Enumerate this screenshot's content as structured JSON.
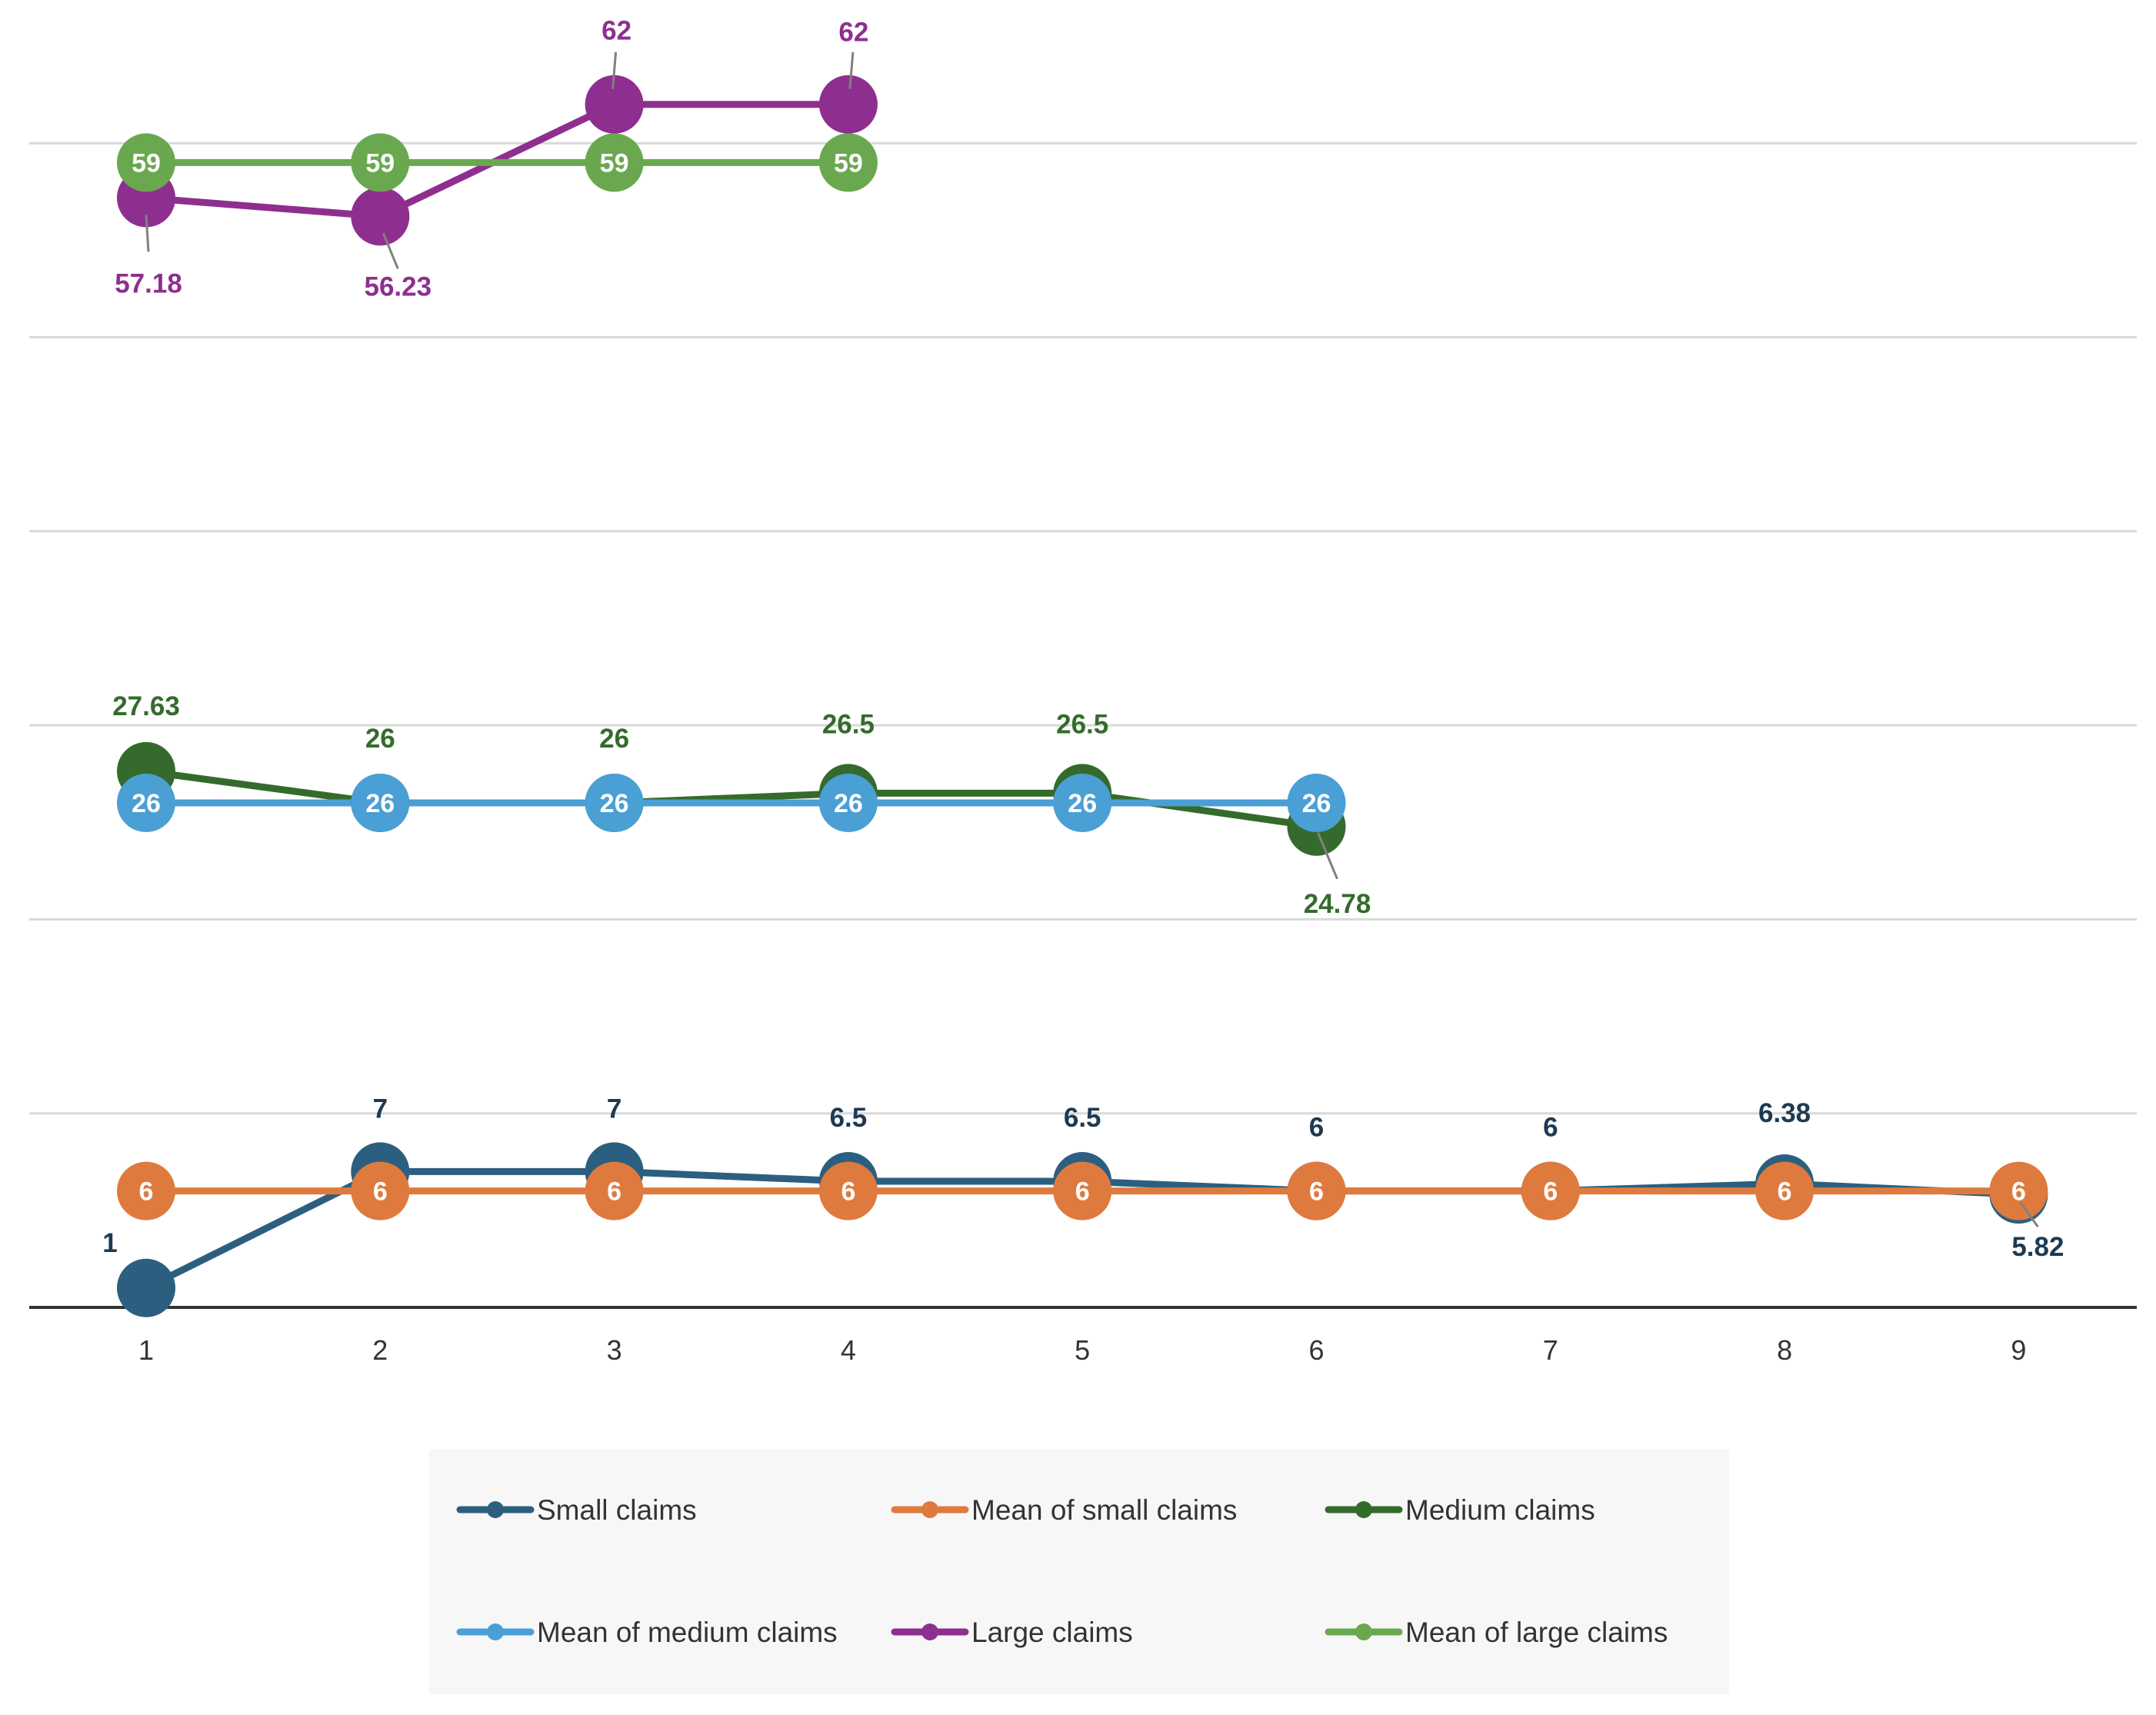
{
  "chart_data": {
    "type": "line",
    "title": "",
    "xlabel": "",
    "ylabel": "",
    "x": [
      1,
      2,
      3,
      4,
      5,
      6,
      7,
      8,
      9
    ],
    "ylim": [
      0,
      60
    ],
    "grid": true,
    "legend": "bottom",
    "series": [
      {
        "name": "Small claims",
        "color": "#2c5f7f",
        "values": [
          1,
          7,
          7,
          6.5,
          6.5,
          6,
          6,
          6.38,
          5.82
        ],
        "labels": [
          "1",
          "7",
          "7",
          "6.5",
          "6.5",
          "6",
          "6",
          "6.38",
          "5.82"
        ]
      },
      {
        "name": "Mean of small claims",
        "color": "#df7a3e",
        "values": [
          6,
          6,
          6,
          6,
          6,
          6,
          6,
          6,
          6
        ],
        "labels": [
          "6",
          "6",
          "6",
          "6",
          "6",
          "6",
          "6",
          "6",
          "6"
        ]
      },
      {
        "name": "Medium claims",
        "color": "#346b2c",
        "values": [
          27.63,
          26,
          26,
          26.5,
          26.5,
          24.78,
          null,
          null,
          null
        ],
        "labels": [
          "27.63",
          "26",
          "26",
          "26.5",
          "26.5",
          "24.78",
          null,
          null,
          null
        ]
      },
      {
        "name": "Mean of medium claims",
        "color": "#4a9fd4",
        "values": [
          26,
          26,
          26,
          26,
          26,
          26,
          null,
          null,
          null
        ],
        "labels": [
          "26",
          "26",
          "26",
          "26",
          "26",
          "26",
          null,
          null,
          null
        ]
      },
      {
        "name": "Large claims",
        "color": "#8e2f8f",
        "values": [
          57.18,
          56.23,
          62,
          62,
          null,
          null,
          null,
          null,
          null
        ],
        "labels": [
          "57.18",
          "56.23",
          "62",
          "62",
          null,
          null,
          null,
          null,
          null
        ]
      },
      {
        "name": "Mean of large claims",
        "color": "#6aa84f",
        "values": [
          59,
          59,
          59,
          59,
          null,
          null,
          null,
          null,
          null
        ],
        "labels": [
          "59",
          "59",
          "59",
          "59",
          null,
          null,
          null,
          null,
          null
        ]
      }
    ]
  }
}
